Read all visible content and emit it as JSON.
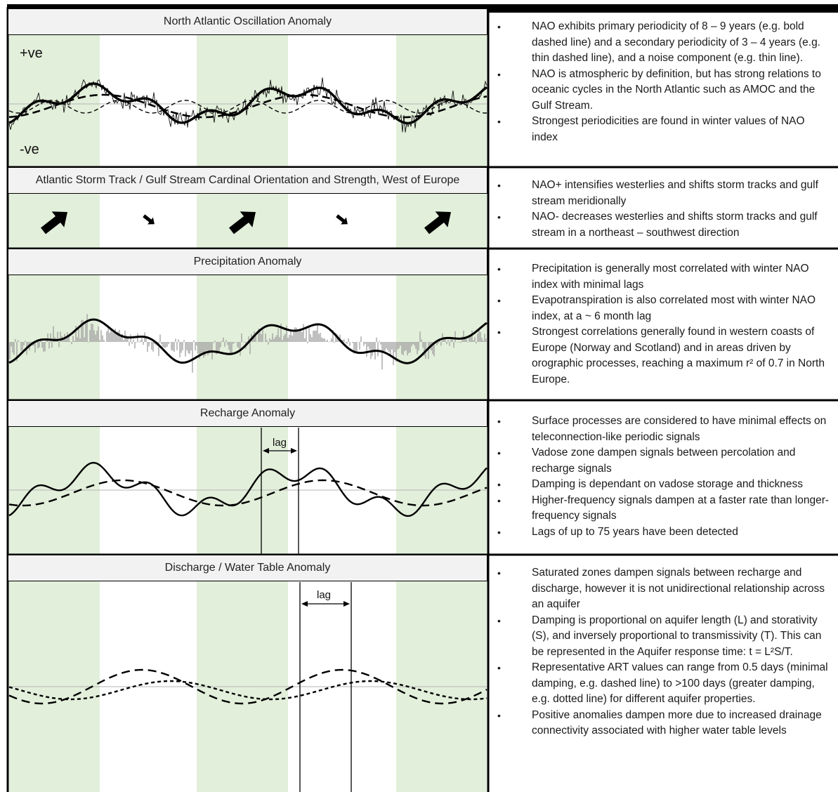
{
  "panels": [
    {
      "title": "North Atlantic Oscillation Anomaly",
      "labels": {
        "positive": "+ve",
        "negative": "-ve"
      },
      "notes": [
        "NAO exhibits primary periodicity of 8 – 9 years (e.g. bold dashed line) and a secondary periodicity of 3 – 4 years (e.g. thin dashed line), and a noise component (e.g. thin line).",
        "NAO is atmospheric by definition, but has strong relations to oceanic cycles in the North Atlantic such as AMOC and the Gulf Stream.",
        "Strongest periodicities are found in winter values of NAO index"
      ]
    },
    {
      "title": "Atlantic Storm Track / Gulf Stream Cardinal Orientation and Strength, West of Europe",
      "arrows": [
        "large-arrow-northeast",
        "small-arrow-southeast",
        "large-arrow-northeast",
        "small-arrow-southeast",
        "large-arrow-northeast"
      ],
      "notes": [
        "NAO+ intensifies westerlies and shifts storm tracks and gulf stream meridionally",
        "NAO- decreases westerlies and shifts storm tracks and gulf stream in a northeast – southwest direction"
      ]
    },
    {
      "title": "Precipitation Anomaly",
      "notes": [
        "Precipitation is generally most correlated with winter NAO index with minimal lags",
        "Evapotranspiration is also correlated most with winter NAO index, at a ~ 6 month lag",
        "Strongest correlations generally found in western coasts of Europe (Norway and Scotland) and in areas driven by orographic processes, reaching a maximum r² of 0.7 in North Europe."
      ]
    },
    {
      "title": "Recharge Anomaly",
      "lag_label": "lag",
      "notes": [
        "Surface processes are considered to have minimal effects on teleconnection-like periodic signals",
        "Vadose zone dampen signals between percolation and recharge signals",
        "Damping is dependant on vadose storage and thickness",
        "Higher-frequency signals dampen at a faster rate than longer-frequency signals",
        "Lags of up to 75 years have been detected"
      ]
    },
    {
      "title": "Discharge / Water Table Anomaly",
      "lag_label": "lag",
      "notes": [
        "Saturated zones dampen signals between recharge and discharge, however it is not unidirectional relationship across an aquifer",
        "Damping is proportional on aquifer length (L) and storativity (S), and inversely proportional to transmissivity (T). This can be represented in the Aquifer response time: t = L²S/T.",
        "Representative ART values can range from 0.5 days (minimal damping, e.g. dashed line) to >100 days (greater damping, e.g. dotted line) for different aquifer properties.",
        "Positive anomalies dampen more due to increased drainage connectivity associated with higher water table levels"
      ]
    }
  ],
  "colors": {
    "band": "#e2efda",
    "border": "#000000",
    "title_bg": "#f2f2f2",
    "precip_bars": "#9e9e9e"
  }
}
